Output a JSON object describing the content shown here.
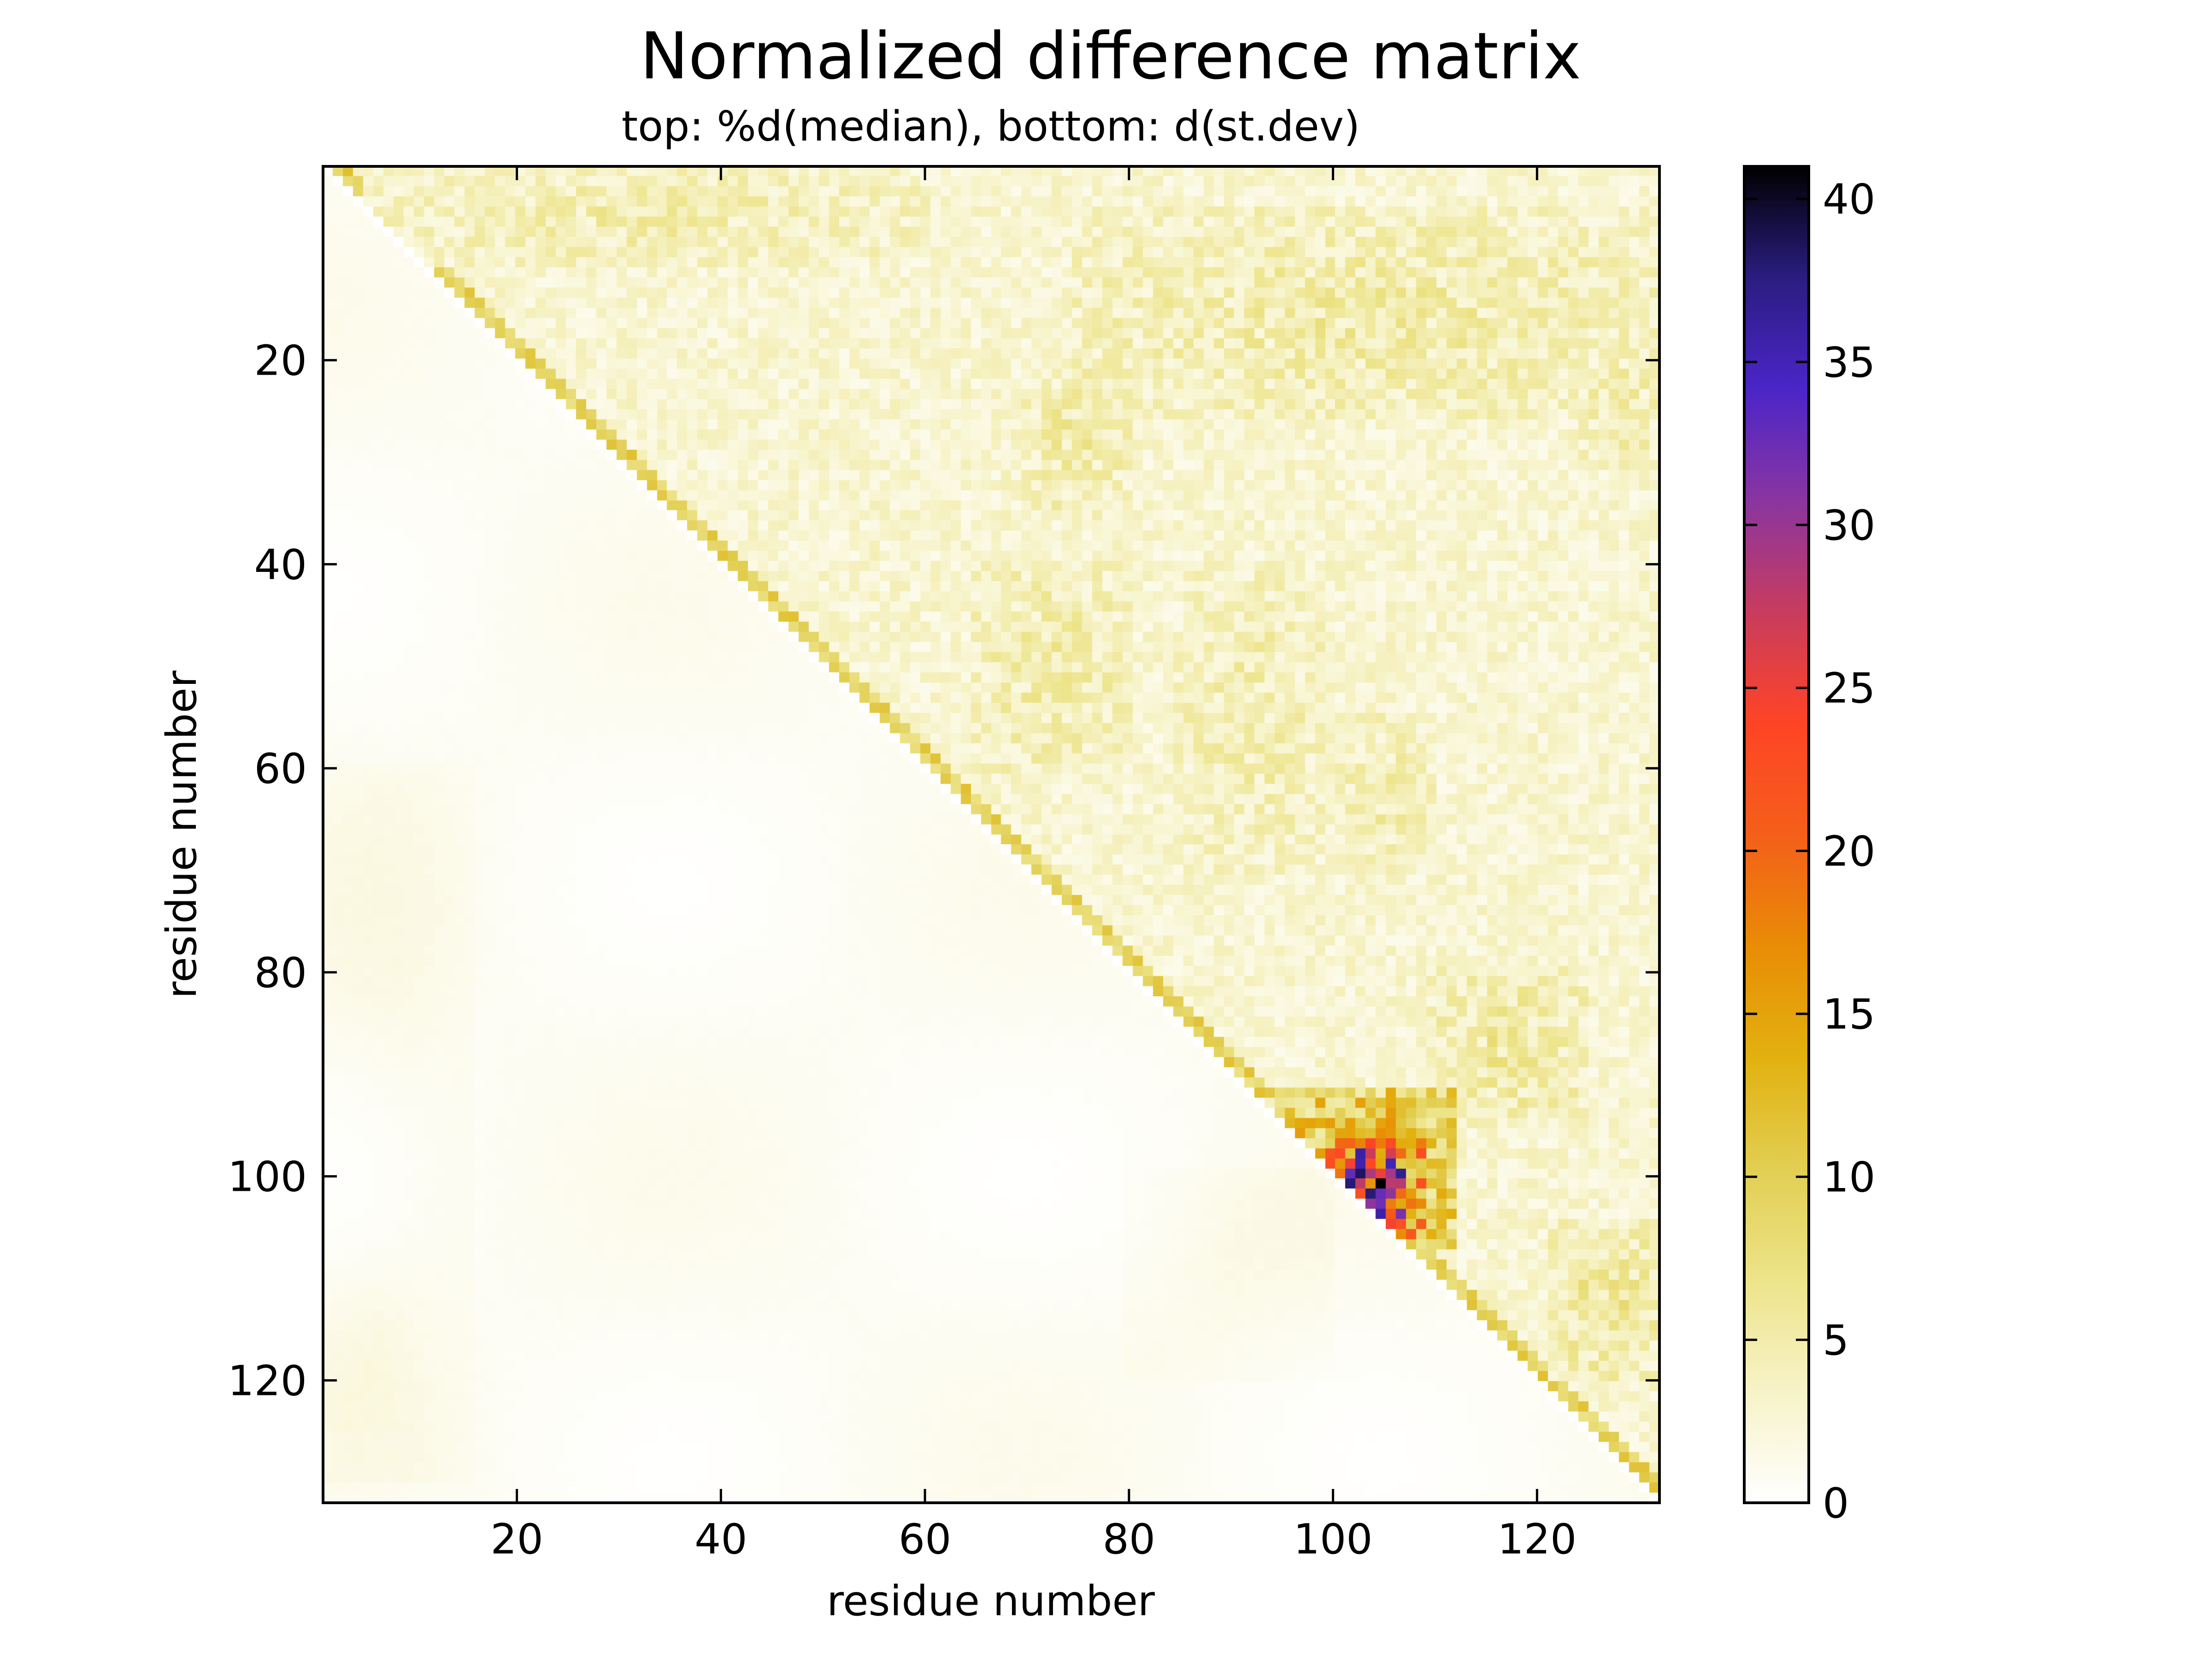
{
  "chart_data": {
    "type": "heatmap",
    "title": "Normalized difference matrix",
    "subtitle": "top: %d(median),  bottom: d(st.dev)",
    "xlabel": "residue number",
    "ylabel": "residue number",
    "xlim": [
      1,
      132
    ],
    "ylim": [
      132,
      1
    ],
    "xticks": [
      "20",
      "40",
      "60",
      "80",
      "100",
      "120"
    ],
    "yticks": [
      "20",
      "40",
      "60",
      "80",
      "100",
      "120"
    ],
    "colorbar": {
      "min": 0,
      "max": 41,
      "ticks": [
        "0",
        "5",
        "10",
        "15",
        "20",
        "25",
        "30",
        "35",
        "40"
      ],
      "colors": [
        "#ffffff",
        "#f7f3c8",
        "#ede48a",
        "#e2ce52",
        "#e2b10f",
        "#e98c06",
        "#f45f1a",
        "#ff4426",
        "#c83c5e",
        "#8a35a0",
        "#4b25c8",
        "#2a1d80",
        "#000000"
      ]
    },
    "upper_triangle": "%d(median)",
    "lower_triangle": "d(st.dev)",
    "upper_background_level": 3.5,
    "lower_background_level": 1.2,
    "regions": [
      {
        "triangle": "upper",
        "rows": [
          1,
          10
        ],
        "cols": [
          5,
          60
        ],
        "level": 6
      },
      {
        "triangle": "upper",
        "rows": [
          5,
          25
        ],
        "cols": [
          75,
          132
        ],
        "level": 6.5
      },
      {
        "triangle": "upper",
        "rows": [
          20,
          35
        ],
        "cols": [
          70,
          80
        ],
        "level": 6.5
      },
      {
        "triangle": "upper",
        "rows": [
          40,
          60
        ],
        "cols": [
          65,
          80
        ],
        "level": 6.5
      },
      {
        "triangle": "upper",
        "rows": [
          40,
          70
        ],
        "cols": [
          85,
          100
        ],
        "level": 6
      },
      {
        "triangle": "upper",
        "rows": [
          55,
          70
        ],
        "cols": [
          100,
          110
        ],
        "level": 6
      },
      {
        "triangle": "upper",
        "rows": [
          80,
          95
        ],
        "cols": [
          110,
          125
        ],
        "level": 7
      },
      {
        "triangle": "upper",
        "rows": [
          105,
          120
        ],
        "cols": [
          122,
          132
        ],
        "level": 7.5
      },
      {
        "triangle": "upper",
        "rows": [
          20,
          30
        ],
        "cols": [
          125,
          132
        ],
        "level": 6.5
      },
      {
        "triangle": "upper",
        "rows": [
          92,
          107
        ],
        "cols": [
          94,
          112
        ],
        "level": 16
      },
      {
        "triangle": "upper",
        "rows": [
          97,
          106
        ],
        "cols": [
          100,
          109
        ],
        "level": 28
      },
      {
        "triangle": "upper",
        "rows": [
          98,
          104
        ],
        "cols": [
          102,
          107
        ],
        "level": 41
      },
      {
        "triangle": "lower",
        "rows": [
          60,
          130
        ],
        "cols": [
          1,
          15
        ],
        "level": 2.5
      },
      {
        "triangle": "lower",
        "rows": [
          100,
          120
        ],
        "cols": [
          80,
          100
        ],
        "level": 2.5
      },
      {
        "triangle": "lower",
        "rows": [
          105,
          125
        ],
        "cols": [
          1,
          10
        ],
        "level": 3
      }
    ]
  }
}
